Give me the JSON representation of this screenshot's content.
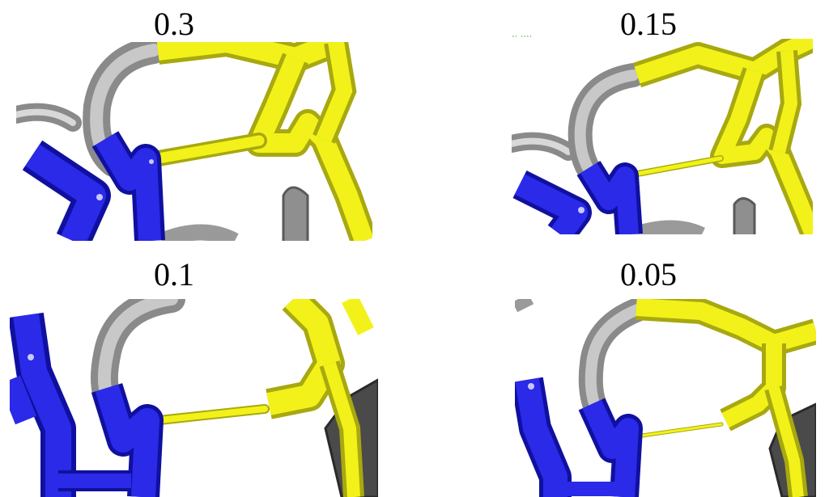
{
  "panels": [
    {
      "label": "0.3"
    },
    {
      "label": "0.15"
    },
    {
      "label": "0.1"
    },
    {
      "label": "0.05"
    }
  ],
  "colors": {
    "blue": "#2a2ae8",
    "blue_dark": "#1010a0",
    "yellow": "#f2f21a",
    "yellow_dark": "#a8a810",
    "gray": "#a8a8a8",
    "gray_dark": "#5a5a5a",
    "background": "#ffffff"
  },
  "icons": [
    "molecular-structure-render"
  ]
}
